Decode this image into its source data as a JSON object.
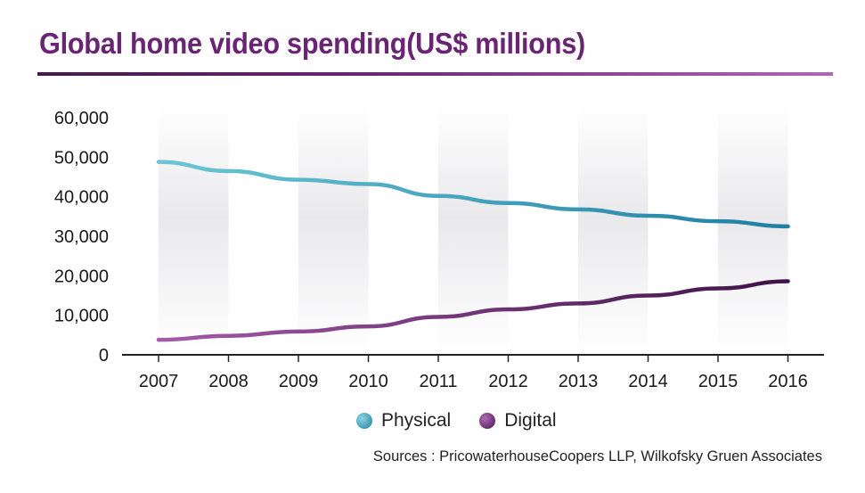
{
  "chart_data": {
    "type": "line",
    "title": "Global home video spending(US$ millions)",
    "x": [
      "2007",
      "2008",
      "2009",
      "2010",
      "2011",
      "2012",
      "2013",
      "2014",
      "2015",
      "2016"
    ],
    "series": [
      {
        "name": "Physical",
        "color": "#2f8fb0",
        "values": [
          48800,
          46500,
          44300,
          43200,
          40200,
          38400,
          36800,
          35200,
          33800,
          32500
        ]
      },
      {
        "name": "Digital",
        "color": "#4a1a52",
        "values": [
          3800,
          4800,
          5900,
          7200,
          9600,
          11500,
          13000,
          15000,
          16800,
          18600
        ]
      }
    ],
    "yticks": [
      "60,000",
      "50,000",
      "40,000",
      "30,000",
      "20,000",
      "10,000",
      "0"
    ],
    "ylim": [
      0,
      60000
    ],
    "grid": false,
    "legend_position": "bottom",
    "source": "Sources : PricowaterhouseCoopers LLP, Wilkofsky Gruen Associates"
  }
}
